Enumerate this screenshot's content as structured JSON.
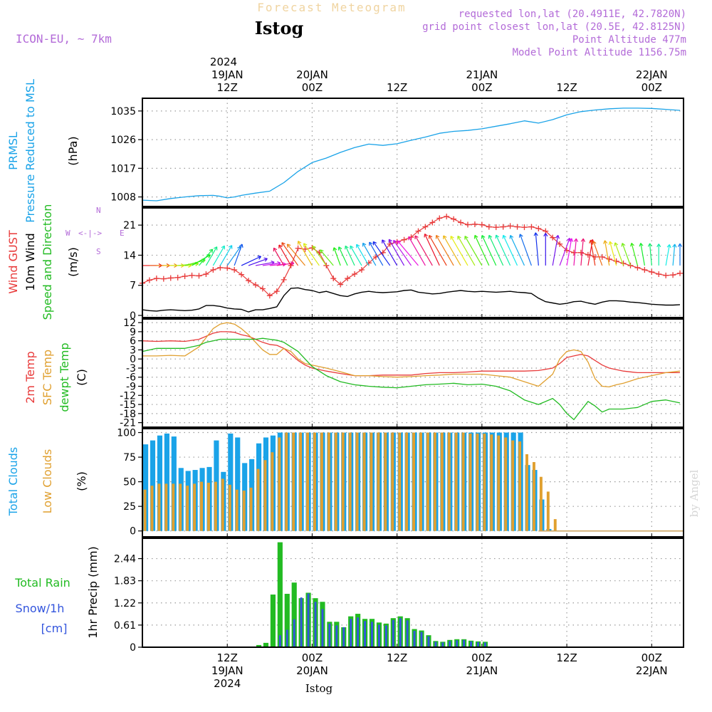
{
  "header": {
    "product": "Forecast Meteogram",
    "location": "Istog",
    "model": "ICON-EU, ~ 7km",
    "requested": "requested lon,lat (20.4911E, 42.7820N)",
    "gridpoint": "grid point closest lon,lat (20.5E, 42.8125N)",
    "point_alt": "Point Altitude 477m",
    "model_alt": "Model Point Altitude 1156.75m",
    "watermark": "by Angel",
    "footer": "Istog"
  },
  "time_axis": {
    "top_year": "2024",
    "ticks": [
      {
        "h": 12,
        "hour": "12Z",
        "date": "19JAN",
        "year": "2024"
      },
      {
        "h": 24,
        "hour": "00Z",
        "date": "20JAN",
        "year": ""
      },
      {
        "h": 36,
        "hour": "12Z",
        "date": "",
        "year": ""
      },
      {
        "h": 48,
        "hour": "00Z",
        "date": "21JAN",
        "year": ""
      },
      {
        "h": 60,
        "hour": "12Z",
        "date": "",
        "year": ""
      },
      {
        "h": 72,
        "hour": "00Z",
        "date": "22JAN",
        "year": ""
      }
    ],
    "x_range_hours": [
      0,
      76.5
    ]
  },
  "panel_labels": {
    "pressure": [
      {
        "text": "PRMSL",
        "color": "#1aa3e8"
      },
      {
        "text": "Pressure Reduced to MSL",
        "color": "#1aa3e8"
      },
      {
        "text": "(hPa)",
        "color": "#000000"
      }
    ],
    "wind": [
      {
        "text": "Wind GUST",
        "color": "#e83a3a"
      },
      {
        "text": "10m Wind",
        "color": "#000000"
      },
      {
        "text": "Speed and Direction",
        "color": "#22bb22"
      },
      {
        "text": "(m/s)",
        "color": "#000000"
      }
    ],
    "wind_compass": {
      "n": "N",
      "s": "S",
      "w": "W",
      "e": "E",
      "arrows": "<-|->"
    },
    "temp": [
      {
        "text": "2m Temp",
        "color": "#e83a3a"
      },
      {
        "text": "SFC Temp",
        "color": "#e0a030"
      },
      {
        "text": "dewpt Temp",
        "color": "#22bb22"
      },
      {
        "text": "(C)",
        "color": "#000000"
      }
    ],
    "clouds": [
      {
        "text": "Total Clouds",
        "color": "#1aa3e8"
      },
      {
        "text": "Low Clouds",
        "color": "#e0a030"
      },
      {
        "text": "(%)",
        "color": "#000000"
      }
    ],
    "precip_left": [
      {
        "text": "Total  Rain",
        "color": "#22bb22"
      },
      {
        "text": "Snow/1h",
        "color": "#3355dd"
      },
      {
        "text": "[cm]",
        "color": "#3355dd"
      }
    ],
    "precip_axis": {
      "text": "1hr Precip (mm)",
      "color": "#000000"
    }
  },
  "colors": {
    "pressure": "#1aa3e8",
    "gust": "#e83a3a",
    "wind": "#000000",
    "temp2m": "#e83a3a",
    "sfc": "#e0a030",
    "dewpt": "#22bb22",
    "total_clouds": "#1aa3e8",
    "low_clouds": "#e0a030",
    "rain": "#22bb22",
    "snow": "#3355dd"
  },
  "chart_data": [
    {
      "type": "line",
      "name": "pressure",
      "ylabel": "(hPa)",
      "yticks": [
        1008,
        1017,
        1026,
        1035
      ],
      "ylim": [
        1005,
        1039
      ],
      "x": [
        0,
        2,
        4,
        6,
        8,
        10,
        11,
        12,
        13,
        14,
        16,
        18,
        20,
        22,
        24,
        26,
        28,
        30,
        32,
        34,
        36,
        38,
        40,
        42,
        44,
        46,
        48,
        50,
        52,
        54,
        56,
        58,
        60,
        62,
        64,
        66,
        68,
        70,
        72,
        74,
        76
      ],
      "values": [
        1007,
        1006.8,
        1007.5,
        1008,
        1008.4,
        1008.5,
        1008.2,
        1007.7,
        1008,
        1008.5,
        1009.2,
        1009.8,
        1012.5,
        1016,
        1018.8,
        1020.2,
        1022,
        1023.5,
        1024.6,
        1024.2,
        1024.7,
        1025.8,
        1026.8,
        1028,
        1028.6,
        1028.9,
        1029.4,
        1030.2,
        1031,
        1031.9,
        1031.2,
        1032.3,
        1033.8,
        1034.8,
        1035.3,
        1035.7,
        1035.9,
        1035.9,
        1035.8,
        1035.5,
        1035.2
      ]
    },
    {
      "type": "line",
      "name": "wind",
      "ylabel": "(m/s)",
      "yticks": [
        0,
        7,
        14,
        21
      ],
      "ylim": [
        -0.5,
        25
      ],
      "x": [
        0,
        1,
        2,
        3,
        4,
        5,
        6,
        7,
        8,
        9,
        10,
        11,
        12,
        13,
        14,
        15,
        16,
        17,
        18,
        19,
        20,
        21,
        22,
        23,
        24,
        25,
        26,
        27,
        28,
        29,
        30,
        31,
        32,
        33,
        34,
        35,
        36,
        37,
        38,
        39,
        40,
        41,
        42,
        43,
        44,
        45,
        46,
        47,
        48,
        49,
        50,
        51,
        52,
        53,
        54,
        55,
        56,
        57,
        58,
        59,
        60,
        61,
        62,
        63,
        64,
        65,
        66,
        67,
        68,
        69,
        70,
        71,
        72,
        73,
        74,
        75,
        76
      ],
      "gust": [
        7.5,
        8.2,
        8.6,
        8.5,
        8.7,
        8.8,
        9.1,
        9.3,
        9.2,
        9.6,
        10.6,
        11.1,
        11.0,
        10.6,
        9.5,
        8.1,
        7.1,
        6.2,
        4.6,
        5.6,
        8.3,
        11.6,
        15.6,
        15.4,
        15.7,
        14.6,
        11.6,
        8.6,
        7.2,
        8.6,
        9.6,
        10.6,
        12.2,
        13.6,
        14.6,
        16.6,
        17.1,
        17.6,
        18.2,
        19.6,
        20.6,
        21.6,
        22.6,
        23.0,
        22.4,
        21.6,
        21.1,
        21.2,
        21.1,
        20.6,
        20.5,
        20.6,
        20.8,
        20.6,
        20.5,
        20.6,
        20.2,
        19.6,
        18.1,
        16.6,
        15.1,
        14.6,
        14.6,
        14.1,
        13.6,
        13.6,
        13.1,
        12.6,
        12.1,
        11.6,
        11.1,
        10.6,
        10.1,
        9.6,
        9.3,
        9.4,
        9.8
      ],
      "speed": [
        1.3,
        1.1,
        1.0,
        1.2,
        1.3,
        1.2,
        1.1,
        1.2,
        1.5,
        2.3,
        2.3,
        2.1,
        1.7,
        1.5,
        1.4,
        0.8,
        1.3,
        1.3,
        1.6,
        2.0,
        4.6,
        6.3,
        6.4,
        6.0,
        5.8,
        5.3,
        5.6,
        5.1,
        4.6,
        4.4,
        5.0,
        5.4,
        5.6,
        5.4,
        5.3,
        5.4,
        5.5,
        5.8,
        5.9,
        5.4,
        5.2,
        5.0,
        5.1,
        5.4,
        5.6,
        5.8,
        5.6,
        5.5,
        5.6,
        5.5,
        5.4,
        5.5,
        5.6,
        5.4,
        5.3,
        5.1,
        4.0,
        3.2,
        2.9,
        2.6,
        2.8,
        3.2,
        3.3,
        2.9,
        2.6,
        3.1,
        3.4,
        3.4,
        3.3,
        3.1,
        3.0,
        2.8,
        2.6,
        2.5,
        2.4,
        2.4,
        2.5
      ],
      "barbs_dir_deg": [
        270,
        270,
        270,
        270,
        270,
        265,
        255,
        240,
        220,
        210,
        210,
        210,
        215,
        200,
        245,
        250,
        260,
        262,
        265,
        262,
        150,
        150,
        145,
        140,
        150,
        145,
        145,
        140,
        160,
        155,
        155,
        150,
        150,
        150,
        150,
        145,
        150,
        150,
        145,
        140,
        150,
        150,
        155,
        150,
        150,
        150,
        150,
        150,
        150,
        155,
        155,
        155,
        155,
        155,
        155,
        160,
        175,
        180,
        190,
        200,
        190,
        185,
        185,
        190,
        170,
        160,
        170,
        165,
        160,
        160,
        165,
        170,
        175,
        180,
        190,
        185,
        180
      ]
    },
    {
      "type": "line",
      "name": "temperature",
      "ylabel": "(C)",
      "yticks": [
        12,
        9,
        6,
        3,
        0,
        -3,
        -6,
        -9,
        -12,
        -15,
        -18,
        -21
      ],
      "ylim": [
        -22.5,
        13.2
      ],
      "x": [
        0,
        2,
        4,
        6,
        8,
        9,
        10,
        11,
        12,
        13,
        14,
        15,
        16,
        17,
        18,
        19,
        20,
        21,
        22,
        23,
        24,
        26,
        28,
        30,
        32,
        34,
        36,
        38,
        40,
        42,
        44,
        46,
        48,
        50,
        52,
        54,
        56,
        58,
        59,
        60,
        61,
        62,
        63,
        64,
        65,
        66,
        67,
        68,
        70,
        72,
        74,
        76
      ],
      "t2m": [
        6.0,
        5.8,
        6.0,
        5.8,
        6.5,
        7.5,
        8.5,
        9.0,
        9.0,
        8.8,
        8.0,
        7.5,
        6.5,
        5.5,
        4.8,
        4.5,
        3.5,
        1.5,
        -0.5,
        -2.0,
        -3.0,
        -4.0,
        -4.8,
        -5.5,
        -5.5,
        -5.3,
        -5.3,
        -5.3,
        -4.8,
        -4.5,
        -4.5,
        -4.3,
        -4.0,
        -4.0,
        -4.0,
        -4.0,
        -3.8,
        -3.0,
        -1.5,
        0.5,
        1.0,
        1.5,
        1.0,
        -0.5,
        -2.0,
        -3.0,
        -3.5,
        -4.0,
        -4.5,
        -4.5,
        -4.5,
        -4.5
      ],
      "sfc": [
        1.0,
        1.0,
        1.2,
        1.0,
        4.0,
        7.0,
        10.0,
        11.5,
        12.0,
        11.5,
        10.0,
        8.0,
        5.5,
        3.0,
        1.5,
        1.5,
        3.5,
        2.5,
        0.0,
        -1.5,
        -2.0,
        -3.0,
        -4.2,
        -5.5,
        -5.5,
        -5.8,
        -6.0,
        -5.8,
        -5.5,
        -5.3,
        -5.0,
        -5.0,
        -5.0,
        -5.5,
        -6.0,
        -7.5,
        -9.0,
        -5.0,
        0.0,
        2.5,
        3.0,
        2.5,
        -1.0,
        -6.5,
        -9.0,
        -9.2,
        -8.5,
        -8.0,
        -6.5,
        -5.5,
        -4.5,
        -4.0
      ],
      "dewpt": [
        2.5,
        3.5,
        3.5,
        3.5,
        4.5,
        5.5,
        6.0,
        6.5,
        6.5,
        6.5,
        6.5,
        6.5,
        6.5,
        6.8,
        6.5,
        6.2,
        5.5,
        4.0,
        2.5,
        0.0,
        -2.5,
        -5.5,
        -7.5,
        -8.5,
        -9.0,
        -9.3,
        -9.5,
        -9.0,
        -8.5,
        -8.3,
        -8.0,
        -8.5,
        -8.3,
        -9.0,
        -10.5,
        -13.5,
        -15.0,
        -13.0,
        -15.0,
        -18.0,
        -20.0,
        -17.0,
        -14.0,
        -15.5,
        -17.5,
        -16.5,
        -16.5,
        -16.5,
        -16.0,
        -14.0,
        -13.5,
        -14.5
      ]
    },
    {
      "type": "bar",
      "name": "clouds",
      "ylabel": "(%)",
      "yticks": [
        0,
        25,
        50,
        75,
        100
      ],
      "ylim": [
        -6,
        104
      ],
      "hours_start": 0,
      "total": [
        88,
        92,
        97,
        99,
        96,
        64,
        61,
        62,
        64,
        65,
        92,
        60,
        99,
        95,
        69,
        73,
        89,
        95,
        97,
        100,
        100,
        100,
        100,
        100,
        100,
        100,
        100,
        100,
        100,
        100,
        100,
        100,
        100,
        100,
        100,
        100,
        100,
        100,
        100,
        100,
        100,
        100,
        100,
        100,
        100,
        100,
        100,
        100,
        100,
        100,
        100,
        100,
        100,
        100,
        67,
        62,
        32,
        2,
        0,
        0,
        0,
        0,
        0,
        0,
        0,
        0,
        0,
        0,
        0,
        0,
        0,
        0,
        0,
        0,
        0,
        0,
        0
      ],
      "low": [
        42,
        46,
        48,
        48,
        48,
        48,
        46,
        48,
        50,
        49,
        50,
        53,
        47,
        42,
        41,
        44,
        63,
        72,
        80,
        95,
        100,
        100,
        100,
        100,
        100,
        100,
        100,
        100,
        100,
        100,
        100,
        100,
        100,
        100,
        100,
        100,
        100,
        100,
        100,
        100,
        100,
        100,
        100,
        100,
        100,
        100,
        99,
        99,
        99,
        98,
        97,
        95,
        92,
        91,
        78,
        70,
        55,
        40,
        12,
        0,
        0,
        0,
        0,
        0,
        0,
        0,
        0,
        0,
        0,
        0,
        0,
        0,
        0,
        0,
        0,
        0,
        0
      ]
    },
    {
      "type": "bar",
      "name": "precipitation",
      "ylabel": "1hr Precip (mm)",
      "yticks": [
        0,
        0.61,
        1.22,
        1.83,
        2.44
      ],
      "ylim": [
        0,
        3.0
      ],
      "hours_start": 0,
      "rain": [
        0,
        0,
        0,
        0,
        0,
        0,
        0,
        0,
        0,
        0,
        0,
        0,
        0,
        0,
        0,
        0,
        0.06,
        0.12,
        1.45,
        2.89,
        1.47,
        1.78,
        1.35,
        1.5,
        1.35,
        1.25,
        0.7,
        0.7,
        0.55,
        0.85,
        0.92,
        0.78,
        0.78,
        0.68,
        0.65,
        0.8,
        0.85,
        0.8,
        0.5,
        0.46,
        0.33,
        0.17,
        0.15,
        0.2,
        0.22,
        0.22,
        0.18,
        0.16,
        0.15,
        0.0,
        0,
        0,
        0,
        0,
        0,
        0,
        0,
        0,
        0,
        0,
        0,
        0,
        0,
        0,
        0,
        0,
        0,
        0,
        0,
        0,
        0,
        0,
        0,
        0,
        0,
        0,
        0
      ],
      "snow": [
        0,
        0,
        0,
        0,
        0,
        0,
        0,
        0,
        0,
        0,
        0,
        0,
        0,
        0,
        0,
        0,
        0,
        0,
        0,
        0.33,
        0.48,
        0.77,
        1.37,
        1.48,
        1.25,
        1.05,
        0.65,
        0.6,
        0.55,
        0.78,
        0.82,
        0.72,
        0.7,
        0.62,
        0.6,
        0.75,
        0.8,
        0.74,
        0.45,
        0.42,
        0.3,
        0.15,
        0.13,
        0.17,
        0.19,
        0.2,
        0.16,
        0.14,
        0.13,
        0.0,
        0,
        0,
        0,
        0,
        0,
        0,
        0,
        0,
        0,
        0,
        0,
        0,
        0,
        0,
        0,
        0,
        0,
        0,
        0,
        0,
        0,
        0,
        0,
        0,
        0,
        0,
        0
      ]
    }
  ]
}
